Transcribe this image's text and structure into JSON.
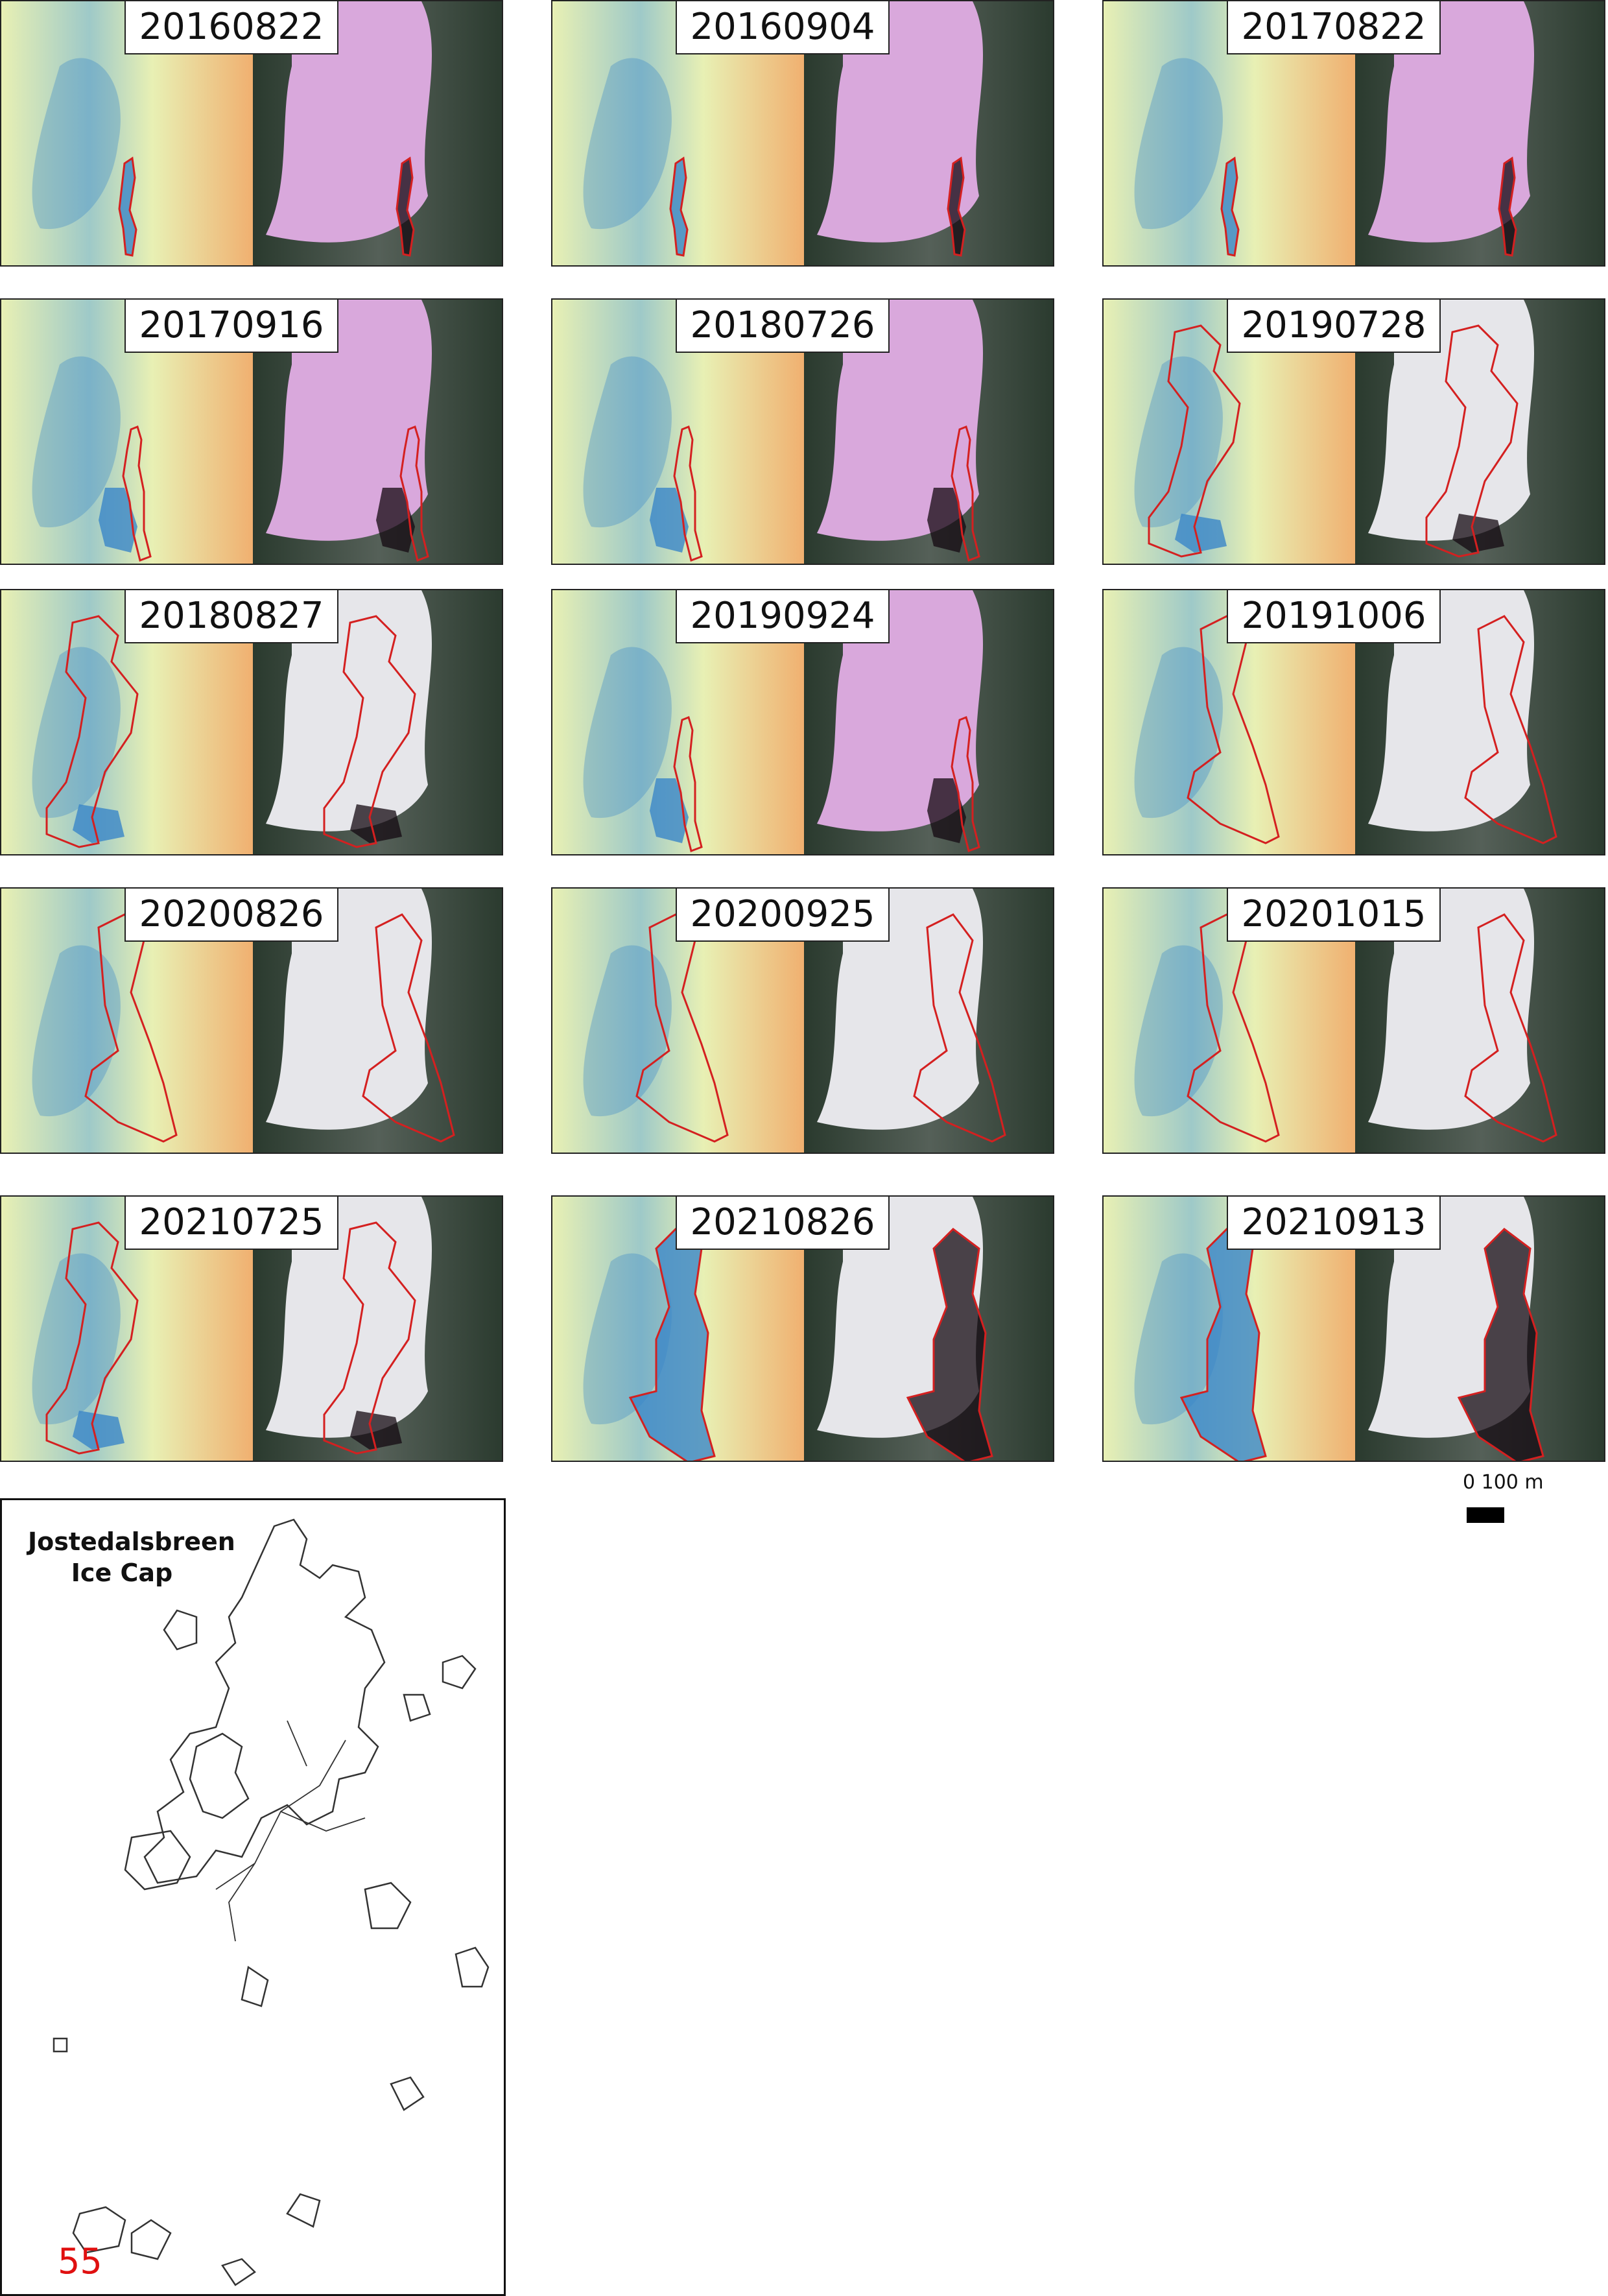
{
  "panels": [
    {
      "date": "20160822",
      "stage": 0
    },
    {
      "date": "20160904",
      "stage": 0
    },
    {
      "date": "20170822",
      "stage": 0
    },
    {
      "date": "20170916",
      "stage": 1
    },
    {
      "date": "20180726",
      "stage": 1
    },
    {
      "date": "20190728",
      "stage": 2
    },
    {
      "date": "20180827",
      "stage": 2
    },
    {
      "date": "20190924",
      "stage": 1
    },
    {
      "date": "20191006",
      "stage": 3
    },
    {
      "date": "20200826",
      "stage": 3
    },
    {
      "date": "20200925",
      "stage": 3
    },
    {
      "date": "20201015",
      "stage": 3
    },
    {
      "date": "20210725",
      "stage": 2
    },
    {
      "date": "20210826",
      "stage": 4
    },
    {
      "date": "20210913",
      "stage": 4
    }
  ],
  "inset": {
    "title_line1": "Jostedalsbreen",
    "title_line2": "Ice Cap",
    "lake_id": "55"
  },
  "scale": {
    "label": "0 100 m"
  },
  "colors": {
    "outline": "#d42020",
    "index_low": "#3a86c8",
    "index_mid": "#e8f0b4",
    "index_high": "#f0b070",
    "ice_pink": "#d9a8dc",
    "forest": "#2a3a2e"
  }
}
